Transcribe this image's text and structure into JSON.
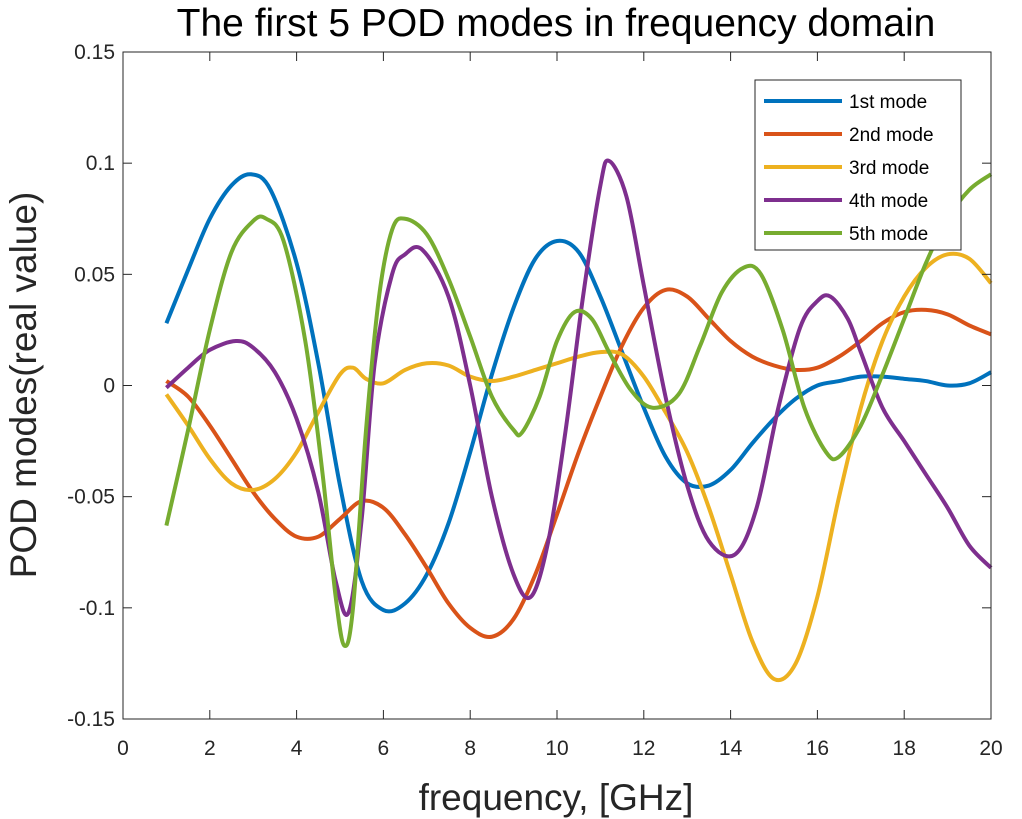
{
  "chart_data": {
    "type": "line",
    "title": "The first 5 POD modes in frequency domain",
    "xlabel": "frequency, [GHz]",
    "ylabel": "POD modes(real value)",
    "xlim": [
      0,
      20
    ],
    "ylim": [
      -0.15,
      0.15
    ],
    "xticks": [
      "0",
      "2",
      "4",
      "6",
      "8",
      "10",
      "12",
      "14",
      "16",
      "18",
      "20"
    ],
    "yticks": [
      "-0.15",
      "-0.1",
      "-0.05",
      "0",
      "0.05",
      "0.1",
      "0.15"
    ],
    "grid": false,
    "legend_position": "top-right",
    "series": [
      {
        "name": "1st mode",
        "color": "#0072BD",
        "points": [
          [
            1,
            0.028
          ],
          [
            1.5,
            0.052
          ],
          [
            2,
            0.075
          ],
          [
            2.5,
            0.09
          ],
          [
            2.95,
            0.095
          ],
          [
            3.4,
            0.088
          ],
          [
            4,
            0.055
          ],
          [
            4.5,
            0.01
          ],
          [
            5,
            -0.045
          ],
          [
            5.5,
            -0.088
          ],
          [
            6,
            -0.101
          ],
          [
            6.5,
            -0.098
          ],
          [
            7,
            -0.085
          ],
          [
            7.5,
            -0.062
          ],
          [
            8,
            -0.03
          ],
          [
            8.5,
            0.005
          ],
          [
            9,
            0.035
          ],
          [
            9.5,
            0.057
          ],
          [
            10,
            0.065
          ],
          [
            10.5,
            0.06
          ],
          [
            11,
            0.04
          ],
          [
            11.5,
            0.015
          ],
          [
            12,
            -0.01
          ],
          [
            12.5,
            -0.032
          ],
          [
            13,
            -0.044
          ],
          [
            13.5,
            -0.045
          ],
          [
            14,
            -0.038
          ],
          [
            14.5,
            -0.026
          ],
          [
            15,
            -0.015
          ],
          [
            15.5,
            -0.006
          ],
          [
            16,
            0.0
          ],
          [
            16.5,
            0.002
          ],
          [
            17,
            0.004
          ],
          [
            17.5,
            0.004
          ],
          [
            18,
            0.003
          ],
          [
            18.5,
            0.002
          ],
          [
            19,
            0.0
          ],
          [
            19.5,
            0.001
          ],
          [
            20,
            0.006
          ]
        ]
      },
      {
        "name": "2nd mode",
        "color": "#D95319",
        "points": [
          [
            1,
            0.002
          ],
          [
            1.5,
            -0.005
          ],
          [
            2,
            -0.018
          ],
          [
            2.5,
            -0.033
          ],
          [
            3,
            -0.048
          ],
          [
            3.5,
            -0.06
          ],
          [
            4,
            -0.068
          ],
          [
            4.5,
            -0.068
          ],
          [
            5,
            -0.06
          ],
          [
            5.5,
            -0.052
          ],
          [
            6,
            -0.055
          ],
          [
            6.5,
            -0.067
          ],
          [
            7,
            -0.082
          ],
          [
            7.5,
            -0.098
          ],
          [
            8,
            -0.109
          ],
          [
            8.5,
            -0.113
          ],
          [
            9,
            -0.105
          ],
          [
            9.5,
            -0.085
          ],
          [
            10,
            -0.058
          ],
          [
            10.5,
            -0.03
          ],
          [
            11,
            -0.005
          ],
          [
            11.5,
            0.018
          ],
          [
            12,
            0.035
          ],
          [
            12.5,
            0.043
          ],
          [
            13,
            0.04
          ],
          [
            13.5,
            0.03
          ],
          [
            14,
            0.02
          ],
          [
            14.5,
            0.013
          ],
          [
            15,
            0.009
          ],
          [
            15.5,
            0.007
          ],
          [
            16,
            0.008
          ],
          [
            16.5,
            0.013
          ],
          [
            17,
            0.02
          ],
          [
            17.5,
            0.028
          ],
          [
            18,
            0.033
          ],
          [
            18.5,
            0.034
          ],
          [
            19,
            0.032
          ],
          [
            19.5,
            0.027
          ],
          [
            20,
            0.023
          ]
        ]
      },
      {
        "name": "3rd mode",
        "color": "#EDB120",
        "points": [
          [
            1,
            -0.004
          ],
          [
            1.5,
            -0.018
          ],
          [
            2,
            -0.033
          ],
          [
            2.5,
            -0.044
          ],
          [
            3,
            -0.047
          ],
          [
            3.5,
            -0.042
          ],
          [
            4,
            -0.03
          ],
          [
            4.5,
            -0.012
          ],
          [
            5,
            0.005
          ],
          [
            5.3,
            0.008
          ],
          [
            5.6,
            0.003
          ],
          [
            6,
            0.001
          ],
          [
            6.5,
            0.007
          ],
          [
            7,
            0.01
          ],
          [
            7.5,
            0.009
          ],
          [
            8,
            0.004
          ],
          [
            8.5,
            0.002
          ],
          [
            9,
            0.004
          ],
          [
            9.5,
            0.007
          ],
          [
            10,
            0.01
          ],
          [
            10.5,
            0.013
          ],
          [
            11,
            0.015
          ],
          [
            11.5,
            0.014
          ],
          [
            12,
            0.004
          ],
          [
            12.5,
            -0.012
          ],
          [
            13,
            -0.03
          ],
          [
            13.5,
            -0.055
          ],
          [
            14,
            -0.085
          ],
          [
            14.5,
            -0.115
          ],
          [
            15,
            -0.132
          ],
          [
            15.5,
            -0.125
          ],
          [
            16,
            -0.095
          ],
          [
            16.5,
            -0.05
          ],
          [
            17,
            -0.01
          ],
          [
            17.5,
            0.02
          ],
          [
            18,
            0.04
          ],
          [
            18.5,
            0.053
          ],
          [
            19,
            0.059
          ],
          [
            19.5,
            0.057
          ],
          [
            20,
            0.046
          ]
        ]
      },
      {
        "name": "4th mode",
        "color": "#7E2F8E",
        "points": [
          [
            1,
            -0.001
          ],
          [
            1.5,
            0.008
          ],
          [
            2,
            0.016
          ],
          [
            2.6,
            0.02
          ],
          [
            3,
            0.017
          ],
          [
            3.5,
            0.006
          ],
          [
            4,
            -0.015
          ],
          [
            4.5,
            -0.048
          ],
          [
            4.9,
            -0.088
          ],
          [
            5.2,
            -0.102
          ],
          [
            5.5,
            -0.06
          ],
          [
            5.8,
            0.01
          ],
          [
            6.2,
            0.05
          ],
          [
            6.5,
            0.059
          ],
          [
            6.9,
            0.061
          ],
          [
            7.5,
            0.04
          ],
          [
            8,
            0.0
          ],
          [
            8.5,
            -0.05
          ],
          [
            9,
            -0.085
          ],
          [
            9.4,
            -0.095
          ],
          [
            9.8,
            -0.07
          ],
          [
            10.2,
            -0.02
          ],
          [
            10.6,
            0.04
          ],
          [
            11,
            0.09
          ],
          [
            11.2,
            0.101
          ],
          [
            11.6,
            0.085
          ],
          [
            12,
            0.045
          ],
          [
            12.5,
            -0.005
          ],
          [
            13,
            -0.045
          ],
          [
            13.5,
            -0.07
          ],
          [
            14.1,
            -0.076
          ],
          [
            14.6,
            -0.055
          ],
          [
            15.1,
            -0.01
          ],
          [
            15.6,
            0.026
          ],
          [
            16,
            0.038
          ],
          [
            16.3,
            0.04
          ],
          [
            16.7,
            0.03
          ],
          [
            17,
            0.015
          ],
          [
            17.5,
            -0.01
          ],
          [
            18,
            -0.025
          ],
          [
            18.5,
            -0.04
          ],
          [
            19,
            -0.055
          ],
          [
            19.5,
            -0.072
          ],
          [
            20,
            -0.082
          ]
        ]
      },
      {
        "name": "5th mode",
        "color": "#77AC30",
        "points": [
          [
            1,
            -0.063
          ],
          [
            1.5,
            -0.02
          ],
          [
            2,
            0.025
          ],
          [
            2.5,
            0.06
          ],
          [
            3,
            0.074
          ],
          [
            3.3,
            0.075
          ],
          [
            3.7,
            0.065
          ],
          [
            4.2,
            0.02
          ],
          [
            4.6,
            -0.04
          ],
          [
            4.9,
            -0.095
          ],
          [
            5.1,
            -0.117
          ],
          [
            5.3,
            -0.1
          ],
          [
            5.6,
            -0.02
          ],
          [
            5.9,
            0.04
          ],
          [
            6.2,
            0.07
          ],
          [
            6.5,
            0.075
          ],
          [
            7,
            0.068
          ],
          [
            7.5,
            0.048
          ],
          [
            8,
            0.022
          ],
          [
            8.5,
            -0.005
          ],
          [
            9,
            -0.02
          ],
          [
            9.2,
            -0.021
          ],
          [
            9.6,
            -0.005
          ],
          [
            10,
            0.02
          ],
          [
            10.4,
            0.033
          ],
          [
            10.8,
            0.03
          ],
          [
            11.2,
            0.015
          ],
          [
            11.7,
            -0.002
          ],
          [
            12.2,
            -0.01
          ],
          [
            12.8,
            -0.004
          ],
          [
            13.3,
            0.018
          ],
          [
            13.8,
            0.042
          ],
          [
            14.3,
            0.053
          ],
          [
            14.7,
            0.05
          ],
          [
            15.2,
            0.025
          ],
          [
            15.7,
            -0.01
          ],
          [
            16.2,
            -0.03
          ],
          [
            16.5,
            -0.032
          ],
          [
            17,
            -0.018
          ],
          [
            17.5,
            0.005
          ],
          [
            18,
            0.03
          ],
          [
            18.5,
            0.055
          ],
          [
            19,
            0.075
          ],
          [
            19.5,
            0.088
          ],
          [
            20,
            0.095
          ]
        ]
      }
    ]
  }
}
